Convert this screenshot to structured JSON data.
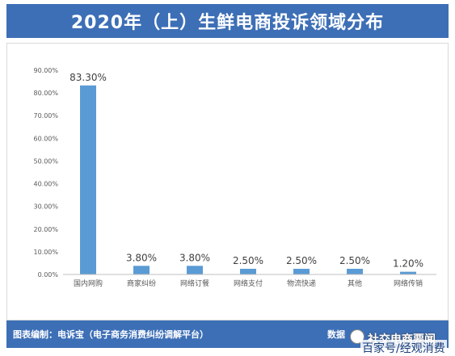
{
  "header": {
    "title": "2020年（上）生鲜电商投诉领域分布"
  },
  "footer": {
    "credit": "图表编制：电诉宝（电子商务消费纠纷调解平台）",
    "source_prefix": "数据",
    "watermark_top": "社交电商要闻",
    "watermark_bottom": "百家号/经观消费"
  },
  "colors": {
    "accent": "#3d6fb6",
    "bar": "#5b9bd5"
  },
  "chart_data": {
    "type": "bar",
    "title": "2020年（上）生鲜电商投诉领域分布",
    "xlabel": "",
    "ylabel": "",
    "categories": [
      "国内网购",
      "商家纠纷",
      "网络订餐",
      "网络支付",
      "物流快递",
      "其他",
      "网络传销"
    ],
    "values": [
      83.3,
      3.8,
      3.8,
      2.5,
      2.5,
      2.5,
      1.2
    ],
    "value_labels": [
      "83.30%",
      "3.80%",
      "3.80%",
      "2.50%",
      "2.50%",
      "2.50%",
      "1.20%"
    ],
    "ylim": [
      0,
      90
    ],
    "yticks": [
      0,
      10,
      20,
      30,
      40,
      50,
      60,
      70,
      80,
      90
    ],
    "ytick_labels": [
      "0.00%",
      "10.00%",
      "20.00%",
      "30.00%",
      "40.00%",
      "50.00%",
      "60.00%",
      "70.00%",
      "80.00%",
      "90.00%"
    ],
    "grid": false,
    "legend": "none"
  }
}
